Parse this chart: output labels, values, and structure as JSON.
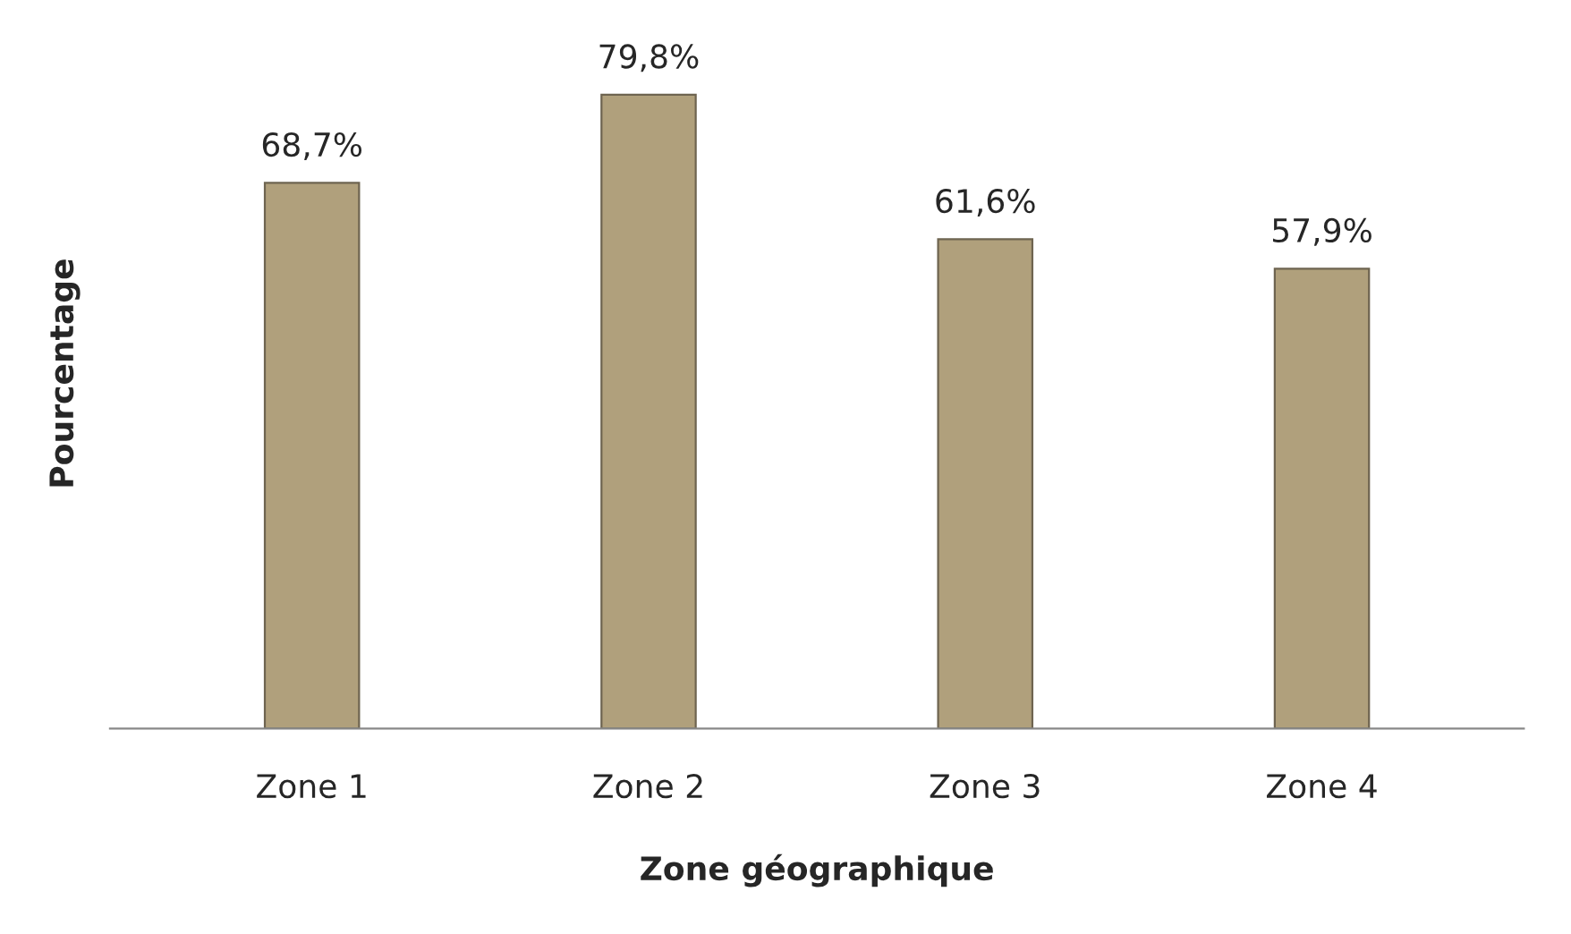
{
  "chart_data": {
    "type": "bar",
    "xlabel": "Zone géographique",
    "ylabel": "Pourcentage",
    "categories": [
      "Zone 1",
      "Zone 2",
      "Zone 3",
      "Zone 4"
    ],
    "values": [
      68.7,
      79.8,
      61.6,
      57.9
    ],
    "value_labels": [
      "68,7%",
      "79,8%",
      "61,6%",
      "57,9%"
    ],
    "color": "#b0a07c",
    "grid": false,
    "legend": false
  }
}
